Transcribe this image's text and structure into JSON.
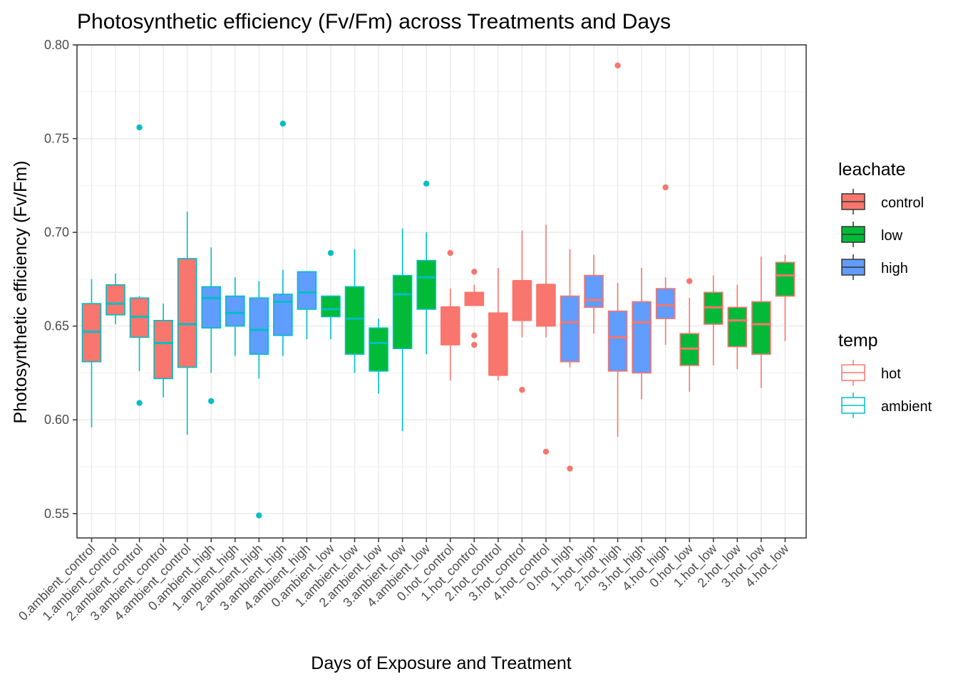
{
  "chart_data": {
    "type": "boxplot",
    "title": "Photosynthetic efficiency (Fv/Fm) across Treatments and Days",
    "xlabel": "Days of Exposure and Treatment",
    "ylabel": "Photosynthetic efficiency (Fv/Fm)",
    "ylim": [
      0.537,
      0.8
    ],
    "yticks": [
      0.55,
      0.6,
      0.65,
      0.7,
      0.75,
      0.8
    ],
    "ytick_labels": [
      "0.55",
      "0.60",
      "0.65",
      "0.70",
      "0.75",
      "0.80"
    ],
    "grid": true,
    "legend_position": "right",
    "legends": [
      {
        "title": "leachate",
        "aesthetic": "fill",
        "items": [
          {
            "label": "control",
            "color": "#F8766D"
          },
          {
            "label": "low",
            "color": "#00BA38"
          },
          {
            "label": "high",
            "color": "#619CFF"
          }
        ]
      },
      {
        "title": "temp",
        "aesthetic": "outline",
        "items": [
          {
            "label": "hot",
            "color": "#F8766D"
          },
          {
            "label": "ambient",
            "color": "#00BFC4"
          }
        ]
      }
    ],
    "fill_colors": {
      "control": "#F8766D",
      "low": "#00BA38",
      "high": "#619CFF"
    },
    "line_colors": {
      "hot": "#F8766D",
      "ambient": "#00BFC4"
    },
    "categories": [
      "0.ambient_control",
      "1.ambient_control",
      "2.ambient_control",
      "3.ambient_control",
      "4.ambient_control",
      "0.ambient_high",
      "1.ambient_high",
      "2.ambient_high",
      "3.ambient_high",
      "4.ambient_high",
      "0.ambient_low",
      "1.ambient_low",
      "2.ambient_low",
      "3.ambient_low",
      "4.ambient_low",
      "0.hot_control",
      "1.hot_control",
      "2.hot_control",
      "3.hot_control",
      "4.hot_control",
      "0.hot_high",
      "1.hot_high",
      "2.hot_high",
      "3.hot_high",
      "4.hot_high",
      "0.hot_low",
      "1.hot_low",
      "2.hot_low",
      "3.hot_low",
      "4.hot_low"
    ],
    "boxes": [
      {
        "category": "0.ambient_control",
        "leachate": "control",
        "temp": "ambient",
        "whisker_low": 0.596,
        "q1": 0.631,
        "median": 0.647,
        "q3": 0.662,
        "whisker_high": 0.675,
        "outliers": []
      },
      {
        "category": "1.ambient_control",
        "leachate": "control",
        "temp": "ambient",
        "whisker_low": 0.651,
        "q1": 0.656,
        "median": 0.662,
        "q3": 0.672,
        "whisker_high": 0.678,
        "outliers": []
      },
      {
        "category": "2.ambient_control",
        "leachate": "control",
        "temp": "ambient",
        "whisker_low": 0.626,
        "q1": 0.644,
        "median": 0.655,
        "q3": 0.665,
        "whisker_high": 0.666,
        "outliers": [
          0.756,
          0.609
        ]
      },
      {
        "category": "3.ambient_control",
        "leachate": "control",
        "temp": "ambient",
        "whisker_low": 0.612,
        "q1": 0.622,
        "median": 0.641,
        "q3": 0.653,
        "whisker_high": 0.662,
        "outliers": []
      },
      {
        "category": "4.ambient_control",
        "leachate": "control",
        "temp": "ambient",
        "whisker_low": 0.592,
        "q1": 0.628,
        "median": 0.651,
        "q3": 0.686,
        "whisker_high": 0.711,
        "outliers": []
      },
      {
        "category": "0.ambient_high",
        "leachate": "high",
        "temp": "ambient",
        "whisker_low": 0.625,
        "q1": 0.649,
        "median": 0.665,
        "q3": 0.671,
        "whisker_high": 0.692,
        "outliers": [
          0.61
        ]
      },
      {
        "category": "1.ambient_high",
        "leachate": "high",
        "temp": "ambient",
        "whisker_low": 0.634,
        "q1": 0.65,
        "median": 0.657,
        "q3": 0.666,
        "whisker_high": 0.676,
        "outliers": []
      },
      {
        "category": "2.ambient_high",
        "leachate": "high",
        "temp": "ambient",
        "whisker_low": 0.622,
        "q1": 0.635,
        "median": 0.648,
        "q3": 0.665,
        "whisker_high": 0.674,
        "outliers": [
          0.549
        ]
      },
      {
        "category": "3.ambient_high",
        "leachate": "high",
        "temp": "ambient",
        "whisker_low": 0.634,
        "q1": 0.645,
        "median": 0.663,
        "q3": 0.667,
        "whisker_high": 0.68,
        "outliers": [
          0.758
        ]
      },
      {
        "category": "4.ambient_high",
        "leachate": "high",
        "temp": "ambient",
        "whisker_low": 0.643,
        "q1": 0.659,
        "median": 0.668,
        "q3": 0.679,
        "whisker_high": 0.679,
        "outliers": []
      },
      {
        "category": "0.ambient_low",
        "leachate": "low",
        "temp": "ambient",
        "whisker_low": 0.643,
        "q1": 0.655,
        "median": 0.659,
        "q3": 0.666,
        "whisker_high": 0.666,
        "outliers": [
          0.689
        ]
      },
      {
        "category": "1.ambient_low",
        "leachate": "low",
        "temp": "ambient",
        "whisker_low": 0.625,
        "q1": 0.635,
        "median": 0.654,
        "q3": 0.671,
        "whisker_high": 0.691,
        "outliers": []
      },
      {
        "category": "2.ambient_low",
        "leachate": "low",
        "temp": "ambient",
        "whisker_low": 0.614,
        "q1": 0.626,
        "median": 0.641,
        "q3": 0.649,
        "whisker_high": 0.654,
        "outliers": []
      },
      {
        "category": "3.ambient_low",
        "leachate": "low",
        "temp": "ambient",
        "whisker_low": 0.594,
        "q1": 0.638,
        "median": 0.667,
        "q3": 0.677,
        "whisker_high": 0.702,
        "outliers": []
      },
      {
        "category": "4.ambient_low",
        "leachate": "low",
        "temp": "ambient",
        "whisker_low": 0.635,
        "q1": 0.659,
        "median": 0.676,
        "q3": 0.685,
        "whisker_high": 0.7,
        "outliers": [
          0.726
        ]
      },
      {
        "category": "0.hot_control",
        "leachate": "control",
        "temp": "hot",
        "whisker_low": 0.621,
        "q1": 0.64,
        "median": 0.66,
        "q3": 0.66,
        "whisker_high": 0.67,
        "outliers": [
          0.689
        ]
      },
      {
        "category": "1.hot_control",
        "leachate": "control",
        "temp": "hot",
        "whisker_low": 0.661,
        "q1": 0.661,
        "median": 0.667,
        "q3": 0.668,
        "whisker_high": 0.672,
        "outliers": [
          0.679,
          0.645,
          0.64
        ]
      },
      {
        "category": "2.hot_control",
        "leachate": "control",
        "temp": "hot",
        "whisker_low": 0.621,
        "q1": 0.624,
        "median": 0.624,
        "q3": 0.657,
        "whisker_high": 0.681,
        "outliers": []
      },
      {
        "category": "3.hot_control",
        "leachate": "control",
        "temp": "hot",
        "whisker_low": 0.644,
        "q1": 0.653,
        "median": 0.674,
        "q3": 0.674,
        "whisker_high": 0.701,
        "outliers": [
          0.616
        ]
      },
      {
        "category": "4.hot_control",
        "leachate": "control",
        "temp": "hot",
        "whisker_low": 0.644,
        "q1": 0.65,
        "median": 0.672,
        "q3": 0.672,
        "whisker_high": 0.704,
        "outliers": [
          0.583
        ]
      },
      {
        "category": "0.hot_high",
        "leachate": "high",
        "temp": "hot",
        "whisker_low": 0.628,
        "q1": 0.631,
        "median": 0.652,
        "q3": 0.666,
        "whisker_high": 0.691,
        "outliers": [
          0.574
        ]
      },
      {
        "category": "1.hot_high",
        "leachate": "high",
        "temp": "hot",
        "whisker_low": 0.646,
        "q1": 0.66,
        "median": 0.664,
        "q3": 0.677,
        "whisker_high": 0.688,
        "outliers": []
      },
      {
        "category": "2.hot_high",
        "leachate": "high",
        "temp": "hot",
        "whisker_low": 0.591,
        "q1": 0.626,
        "median": 0.644,
        "q3": 0.658,
        "whisker_high": 0.673,
        "outliers": [
          0.789
        ]
      },
      {
        "category": "3.hot_high",
        "leachate": "high",
        "temp": "hot",
        "whisker_low": 0.611,
        "q1": 0.625,
        "median": 0.652,
        "q3": 0.663,
        "whisker_high": 0.681,
        "outliers": []
      },
      {
        "category": "4.hot_high",
        "leachate": "high",
        "temp": "hot",
        "whisker_low": 0.64,
        "q1": 0.654,
        "median": 0.661,
        "q3": 0.67,
        "whisker_high": 0.676,
        "outliers": [
          0.724
        ]
      },
      {
        "category": "0.hot_low",
        "leachate": "low",
        "temp": "hot",
        "whisker_low": 0.615,
        "q1": 0.629,
        "median": 0.638,
        "q3": 0.646,
        "whisker_high": 0.665,
        "outliers": [
          0.674
        ]
      },
      {
        "category": "1.hot_low",
        "leachate": "low",
        "temp": "hot",
        "whisker_low": 0.629,
        "q1": 0.651,
        "median": 0.66,
        "q3": 0.668,
        "whisker_high": 0.677,
        "outliers": []
      },
      {
        "category": "2.hot_low",
        "leachate": "low",
        "temp": "hot",
        "whisker_low": 0.627,
        "q1": 0.639,
        "median": 0.653,
        "q3": 0.66,
        "whisker_high": 0.672,
        "outliers": []
      },
      {
        "category": "3.hot_low",
        "leachate": "low",
        "temp": "hot",
        "whisker_low": 0.617,
        "q1": 0.635,
        "median": 0.651,
        "q3": 0.663,
        "whisker_high": 0.687,
        "outliers": []
      },
      {
        "category": "4.hot_low",
        "leachate": "low",
        "temp": "hot",
        "whisker_low": 0.642,
        "q1": 0.666,
        "median": 0.677,
        "q3": 0.684,
        "whisker_high": 0.688,
        "outliers": []
      }
    ]
  }
}
